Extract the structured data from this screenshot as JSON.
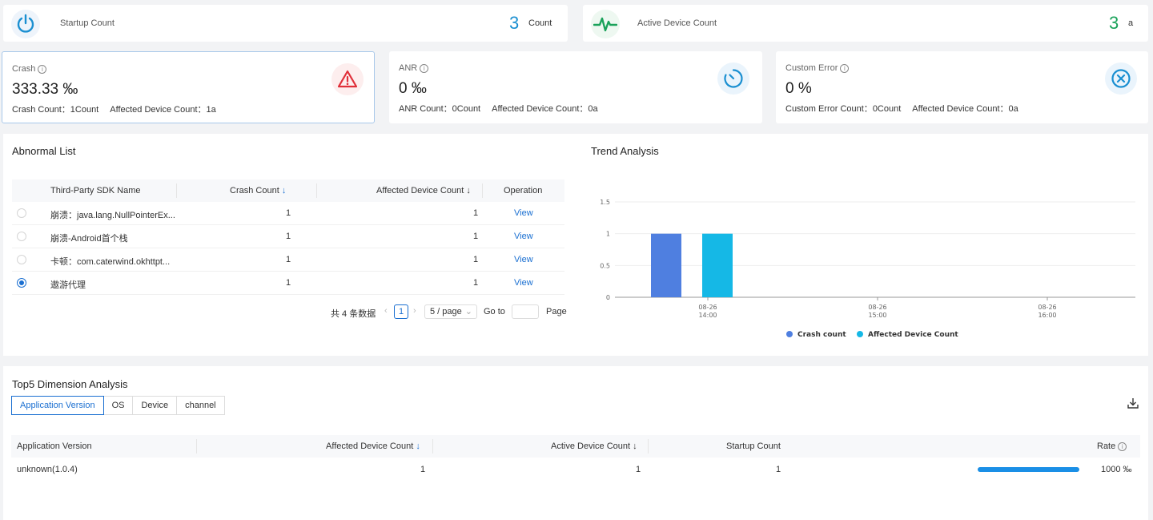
{
  "stats": {
    "startup": {
      "label": "Startup Count",
      "value": "3",
      "unit": "Count",
      "icon": "power-icon",
      "color": "#1a8fd1"
    },
    "active": {
      "label": "Active Device Count",
      "value": "3",
      "unit": "a",
      "icon": "pulse-icon",
      "color": "#1aa25a"
    }
  },
  "metrics": [
    {
      "title": "Crash",
      "value": "333.33 ‰",
      "sub1_label": "Crash Count：",
      "sub1_value": "1Count",
      "sub2_label": "Affected Device Count：",
      "sub2_value": "1a",
      "icon": "warning-triangle-icon"
    },
    {
      "title": "ANR",
      "value": "0 ‰",
      "sub1_label": "ANR Count：",
      "sub1_value": "0Count",
      "sub2_label": "Affected Device Count：",
      "sub2_value": "0a",
      "icon": "timer-icon"
    },
    {
      "title": "Custom Error",
      "value": "0 %",
      "sub1_label": "Custom Error Count：",
      "sub1_value": "0Count",
      "sub2_label": "Affected Device Count：",
      "sub2_value": "0a",
      "icon": "close-circle-icon"
    }
  ],
  "abnormal": {
    "title": "Abnormal List",
    "columns": [
      "Third-Party SDK Name",
      "Crash Count",
      "Affected Device Count",
      "Operation"
    ],
    "rows": [
      {
        "name": "崩溃：java.lang.NullPointerEx...",
        "crash": "1",
        "devices": "1",
        "op": "View",
        "selected": false
      },
      {
        "name": "崩溃-Android首个栈",
        "crash": "1",
        "devices": "1",
        "op": "View",
        "selected": false
      },
      {
        "name": "卡顿：com.caterwind.okhttpt...",
        "crash": "1",
        "devices": "1",
        "op": "View",
        "selected": false
      },
      {
        "name": "遨游代理",
        "crash": "1",
        "devices": "1",
        "op": "View",
        "selected": true
      }
    ],
    "pager": {
      "total": "共 4 条数据",
      "page": "1",
      "size": "5 / page",
      "goto": "Go to",
      "page_label": "Page"
    }
  },
  "trend": {
    "title": "Trend Analysis"
  },
  "chart_data": {
    "type": "bar",
    "categories": [
      "08-26 14:00",
      "08-26 15:00",
      "08-26 16:00"
    ],
    "series": [
      {
        "name": "Crash count",
        "values": [
          1,
          0,
          0
        ],
        "color": "#4f7fe0"
      },
      {
        "name": "Affected Device Count",
        "values": [
          1,
          0,
          0
        ],
        "color": "#15b8e6"
      }
    ],
    "yticks": [
      "1.5",
      "1",
      "0.5",
      "0"
    ],
    "ylim": [
      0,
      1.5
    ],
    "xticks": [
      {
        "l1": "08-26",
        "l2": "14:00"
      },
      {
        "l1": "08-26",
        "l2": "15:00"
      },
      {
        "l1": "08-26",
        "l2": "16:00"
      }
    ],
    "legend": "bottom",
    "grid": true
  },
  "top5": {
    "title": "Top5 Dimension Analysis",
    "tabs": [
      "Application Version",
      "OS",
      "Device",
      "channel"
    ],
    "columns": [
      "Application Version",
      "Affected Device Count",
      "Active Device Count",
      "Startup Count",
      "Rate"
    ],
    "row": {
      "version": "unknown(1.0.4)",
      "affected": "1",
      "active": "1",
      "startup": "1",
      "rate": "1000 ‰",
      "rate_fill": 1.0
    }
  }
}
